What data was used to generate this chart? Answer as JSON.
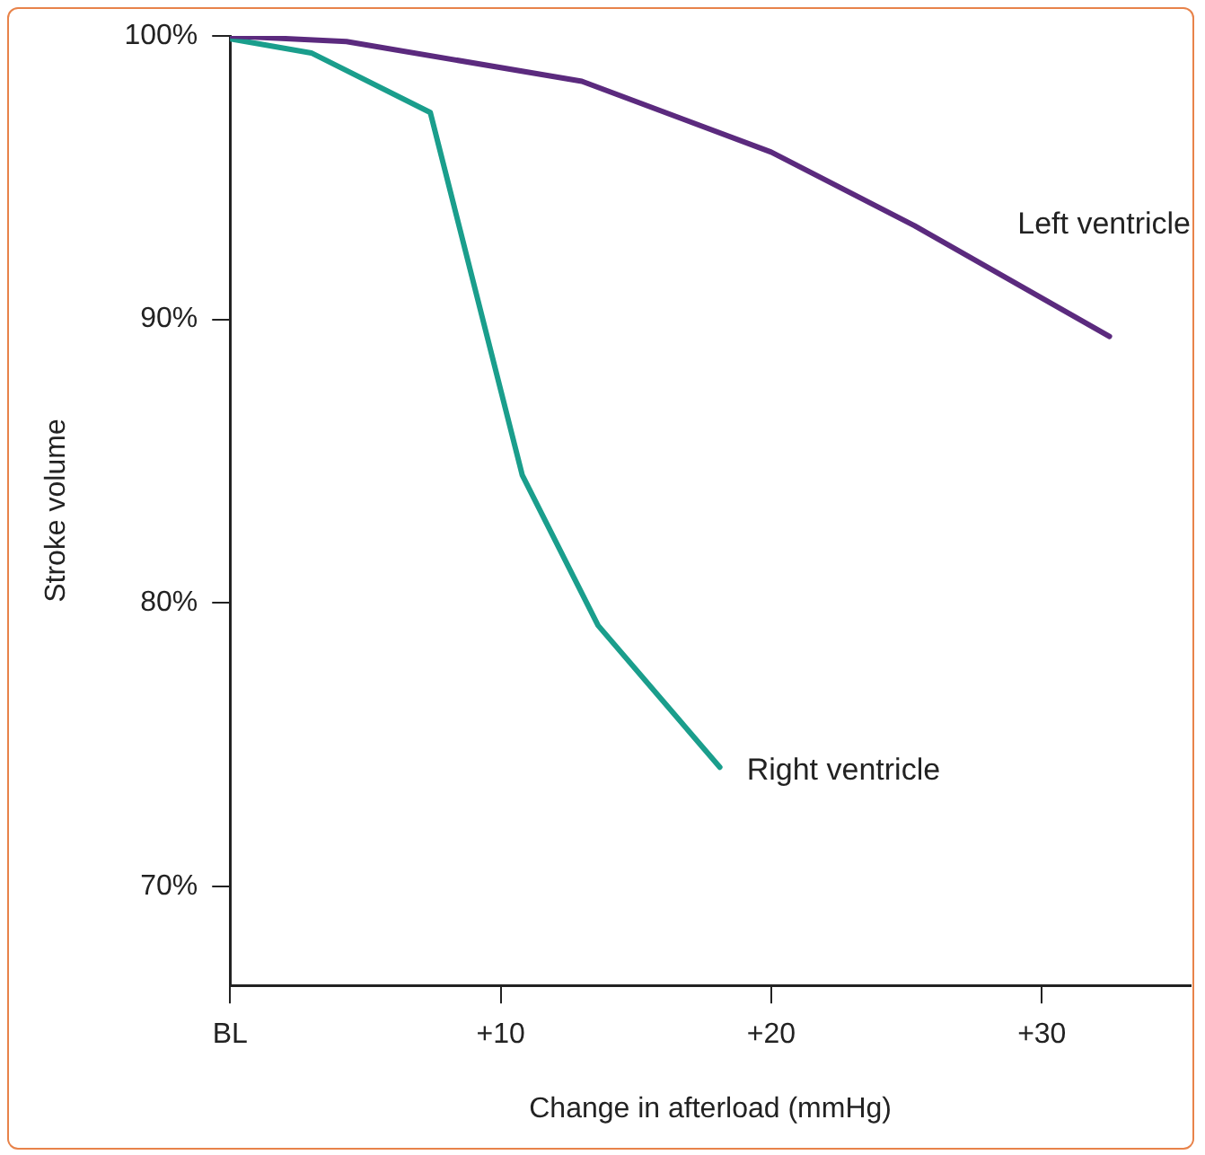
{
  "chart_data": {
    "type": "line",
    "xlabel": "Change in afterload (mmHg)",
    "ylabel": "Stroke volume",
    "xlim": [
      0,
      35.5
    ],
    "xticks": [
      {
        "value": 0,
        "label": "BL"
      },
      {
        "value": 10,
        "label": "+10"
      },
      {
        "value": 20,
        "label": "+20"
      },
      {
        "value": 30,
        "label": "+30"
      }
    ],
    "ylim": [
      66.5,
      100
    ],
    "yticks": [
      {
        "value": 70,
        "label": "70%"
      },
      {
        "value": 80,
        "label": "80%"
      },
      {
        "value": 90,
        "label": "90%"
      },
      {
        "value": 100,
        "label": "100%"
      }
    ],
    "grid": false,
    "legend": false,
    "marker": "none",
    "line_style": "solid",
    "series": [
      {
        "name": "Left ventricle",
        "color": "#5b2a7e",
        "x": [
          0,
          4.3,
          13,
          20,
          25.3,
          32.5
        ],
        "values": [
          100,
          99.8,
          98.4,
          95.9,
          93.3,
          89.4
        ]
      },
      {
        "name": "Right ventricle",
        "color": "#1a9e8c",
        "x": [
          0,
          3,
          7.4,
          10.8,
          13.6,
          18.1
        ],
        "values": [
          99.9,
          99.4,
          97.3,
          84.5,
          79.2,
          74.2
        ]
      }
    ]
  }
}
